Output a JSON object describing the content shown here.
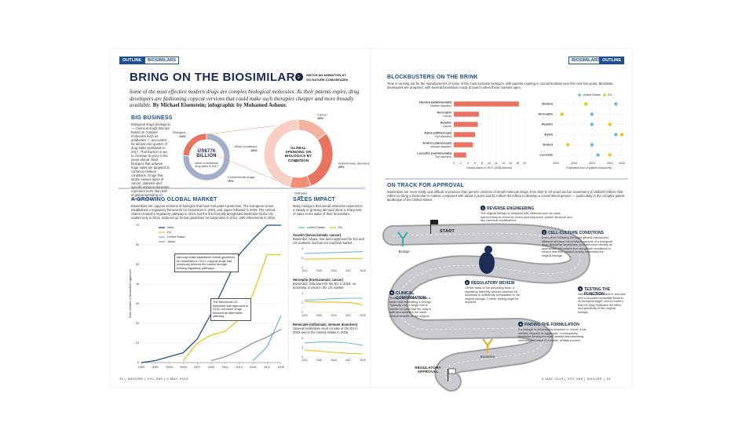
{
  "left": {
    "tags": [
      "OUTLINE",
      "BIOSIMILARS"
    ],
    "title": "BRING ON THE BIOSIMILARS",
    "watch_label": "WATCH AN ANIMATION AT:",
    "watch_url": "GO.NATURE.COM/2EEAZE6",
    "intro": "Some of the most effective modern drugs are complex biological molecules. As their patents expire, drug developers are fashioning copycat versions that could make such therapies cheaper and more broadly available.",
    "byline": "By Michael Eisenstein; infographic by Mohamed Ashour.",
    "big_business": {
      "heading": "BIG BUSINESS",
      "text": "Biological drugs (biologics) — chemical drugs that are based on complex molecules such as antibodies — accounted for almost one-quarter of drug sales worldwide in 2017. That fraction is set to continue to grow in the years ahead. Most biologics that achieve huge sales are targeted at common medical conditions. Drugs that tackle various types of cancer, diabetes and specific immune disorders represent more than half of global spending on biologics (in 2017).",
      "total_value": "US$776 BILLION",
      "total_caption": "Value of worldwide drug sales in 2017",
      "drugs_chart": {
        "type": "pie",
        "categories": [
          "Biologics",
          "Conventional drugs"
        ],
        "values": [
          24,
          76
        ],
        "value_labels": [
          "24%",
          "76%"
        ],
        "colors": [
          "#e8735f",
          "#a3aecb"
        ]
      },
      "conditions_chart": {
        "type": "pie",
        "title": "GLOBAL SPENDING ON BIOLOGICS BY CONDITION",
        "subtitle": "(2017)",
        "categories": [
          "Cancer",
          "Autoimmune disorders",
          "Diabetes",
          "Other conditions"
        ],
        "values": [
          15,
          29,
          10,
          46
        ],
        "value_labels": [
          "15%",
          "29%",
          "10%",
          "46%"
        ],
        "colors": [
          "#f3b3a2",
          "#e8735f",
          "#ef8f78",
          "#f7cfc4"
        ]
      }
    },
    "market": {
      "heading": "A GROWING GLOBAL MARKET",
      "text": "Biosimilars are copycat versions of biologics that have lost patent protection. The European Union established a regulatory framework for biosimilars in 2003, and Japan followed in 2009. The United States created a regulatory pathway in 2010, but the first formally designated biosimilar hit the US market only in 2015. India set up formal guidelines for biosimilars in 2012, with refinements in 2016.",
      "chart": {
        "type": "line",
        "ylabel": "Total number of biosimilars approved",
        "x": [
          1999,
          2001,
          2003,
          2005,
          2007,
          2009,
          2011,
          2013,
          2015,
          2017,
          2019
        ],
        "xlim": [
          1999,
          2019
        ],
        "xticks": [
          1999,
          2001,
          2003,
          2005,
          2007,
          2009,
          2011,
          2013,
          2015,
          2017,
          2019
        ],
        "ylim": [
          0,
          70
        ],
        "yticks": [
          0,
          10,
          20,
          30,
          40,
          50,
          60,
          70
        ],
        "series": [
          {
            "name": "India",
            "color": "#1f4f8f",
            "values": [
              0,
              1,
              3,
              5,
              12,
              25,
              40,
              55,
              63,
              70,
              70
            ]
          },
          {
            "name": "EU",
            "color": "#f0c419",
            "values": [
              null,
              null,
              null,
              1,
              10,
              14,
              16,
              22,
              35,
              55,
              55
            ]
          },
          {
            "name": "United States",
            "color": "#6fb8e0",
            "values": [
              null,
              null,
              null,
              null,
              null,
              null,
              null,
              null,
              1,
              8,
              24
            ]
          },
          {
            "name": "Japan",
            "color": "#9a9aa6",
            "values": [
              null,
              null,
              null,
              null,
              null,
              1,
              3,
              6,
              10,
              13,
              17
            ]
          }
        ],
        "annotations": [
          "Although India established formal guidelines for biosimilars in 2012, copycat drugs had previously entered the market through existing regulatory pathways.",
          "The first formal US biosimilar was approved in 2015, but some drugs followed an alternative pathway."
        ]
      }
    },
    "sales": {
      "heading": "SALES IMPACT",
      "text": "Many biologics that would otherwise experience a steady or growing demand show a sharp loss of sales in the wake of their biosimilars.",
      "legend": [
        "United States",
        "EU"
      ],
      "colors": [
        "#6fb8e0",
        "#f0c419"
      ],
      "panels": [
        {
          "title": "Avastin (bevacizumab; cancer)",
          "text": "Biosimilar: Mvasi, has been approved for EU and US markets, but has not reached market.",
          "x": [
            2014,
            2015,
            2016,
            2017,
            2018
          ],
          "ylim": [
            0,
            4
          ],
          "yticks": [
            0,
            2,
            4
          ],
          "values": [
            [
              3.0,
              3.1,
              3.2,
              3.3,
              3.4
            ],
            [
              1.8,
              1.8,
              1.9,
              1.9,
              1.9
            ]
          ]
        },
        {
          "title": "Herceptin (trastuzumab; cancer)",
          "text": "Biosimilar: Ontruzant hit the EU in 2018; no biosimilar is used in the US market.",
          "x": [
            2014,
            2015,
            2016,
            2017,
            2018
          ],
          "ylim": [
            0,
            4
          ],
          "yticks": [
            0,
            2,
            4
          ],
          "values": [
            [
              2.6,
              2.7,
              2.9,
              3.0,
              3.0
            ],
            [
              2.3,
              2.2,
              2.2,
              2.1,
              1.6
            ]
          ]
        },
        {
          "title": "Remicade (infliximab; immune disorders)",
          "text": "Several biosimilars went on sale in the EU in 2015 and in the United States in 2016.",
          "x": [
            2014,
            2015,
            2016,
            2017,
            2018
          ],
          "ylim": [
            0,
            6
          ],
          "yticks": [
            0,
            3,
            6
          ],
          "values": [
            [
              4.5,
              4.8,
              4.8,
              4.5,
              3.7
            ],
            [
              2.2,
              1.9,
              1.5,
              1.2,
              1.0
            ]
          ]
        }
      ]
    },
    "footer": "32 | NATURE | VOL 569 | 9 MAY 2019"
  },
  "right": {
    "tags": [
      "BIOSIMILARS",
      "OUTLINE"
    ],
    "blockbusters": {
      "heading": "BLOCKBUSTERS ON THE BRINK",
      "text": "Time is running out for the manufacturers of some of the most lucrative biologics, with patents expiring in crucial markets over the next few years. Biosimilar developers are prepared, with several biosimilars ready to launch when these markets open.",
      "bar_chart": {
        "type": "bar",
        "categories": [
          "Humira (adalimumab)",
          "Herceptin",
          "Avastin",
          "Eylea (aflibercept)",
          "Enbrel (etanercept)",
          "Lucentis (ranibizumab)"
        ],
        "notes": [
          "Immune disorders",
          "Cancer",
          "Cancer",
          "Eye disorders",
          "Immune disorders",
          "Eye disorders"
        ],
        "values": [
          18.4,
          7.1,
          6.8,
          6.0,
          5.4,
          3.5
        ],
        "color": "#e8735f",
        "xlabel": "Global sales in 2017 (US$ billions)",
        "xlim": [
          0,
          20
        ],
        "xticks": [
          0,
          2,
          4,
          6,
          8,
          10,
          12,
          14,
          16,
          18,
          20
        ]
      },
      "timeline": {
        "type": "scatter",
        "categories": [
          "Humira",
          "Herceptin",
          "Avastin",
          "Eylea",
          "Enbrel",
          "Lucentis"
        ],
        "xlabel": "Expected end of patent exclusivity",
        "xlim": [
          2013,
          2024
        ],
        "xticks": [
          2013,
          2016,
          2019,
          2022,
          2024
        ],
        "series": [
          {
            "name": "United States",
            "color": "#6fb8e0",
            "values": [
              2023,
              2019,
              2019,
              2023,
              2019,
              2020
            ]
          },
          {
            "name": "EU",
            "color": "#f0c419",
            "values": [
              2018,
              2014,
              2022,
              2024,
              2015,
              2022
            ]
          }
        ]
      }
    },
    "track": {
      "heading": "ON TRACK FOR APPROVAL",
      "text": "Biosimilars are more costly and difficult to produce than generic versions of small-molecule drugs, from their 5–10 years and an investment of US$100 million–250 million to bring a biosimilar to market, compared with about 2 years and $1 million–$4 million to develop a conventional generic — particularly in the complex patent landscape of the United States.",
      "start": "START",
      "finish": "REGULATORY APPROVAL",
      "biologic": "Biologic",
      "biosimilar": "Biosimilar",
      "steps": [
        {
          "number": "1",
          "title": "REVERSE ENGINEERING",
          "text": "The original biologic is analysed with methods such as mass spectrometry to reveal its amino-acid sequence, protein structure and any chemical modifications."
        },
        {
          "number": "2",
          "title": "CELL-CULTURE CONDITIONS",
          "text": "Even when following the same genetic instructions, different cell lines can produce variants of a biological drug. Biosimilar developers must therefore identify an appropriate cell-culture line and growth conditions to ensure that their product closely resembles the original biologic."
        },
        {
          "number": "3",
          "title": "TESTING THE FUNCTION",
          "text": "Various assays are used to test how well a proposed biosimilar binds to its biological target, and to confirm that the drug replicates the effect and specificity of the original biologic."
        },
        {
          "number": "4",
          "title": "FINDING THE FORMULATION",
          "text": "If a biologic is not properly prepared or mixed, it can misfold, degrade or aggregate. Consequently, biosimilar developers must identify manufacturing methods that result in a stable, reliable product."
        },
        {
          "number": "5",
          "title": "CLINICAL CONFIRMATION",
          "text": "Testing a biosimilar in people is faster than evaluating a biologic. Typically, only a single trial is needed to show that the drug is safe and achieves the same clinical benefits as the original."
        },
        {
          "number": "6",
          "title": "REGULATORY REVIEW",
          "text": "On the basis of the preceding tests, a regulatory authority decides whether the biosimilar is sufficiently comparable to the original biologic. Further testing might be required."
        }
      ]
    },
    "footer": "9 MAY 2019 | VOL 569 | NATURE | 33"
  }
}
